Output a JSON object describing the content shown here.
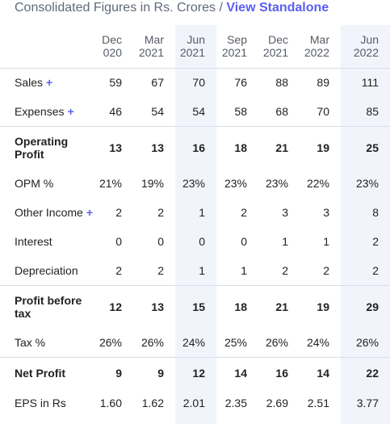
{
  "header": {
    "title": "Consolidated Figures in Rs. Crores",
    "separator": " / ",
    "link": "View Standalone"
  },
  "table": {
    "columns": [
      {
        "line1": "Dec",
        "line2": "020"
      },
      {
        "line1": "Mar",
        "line2": "2021"
      },
      {
        "line1": "Jun",
        "line2": "2021"
      },
      {
        "line1": "Sep",
        "line2": "2021"
      },
      {
        "line1": "Dec",
        "line2": "2021"
      },
      {
        "line1": "Mar",
        "line2": "2022"
      },
      {
        "line1": "Jun",
        "line2": "2022"
      }
    ],
    "rows": [
      {
        "label": "Sales",
        "plus": "+",
        "values": [
          "59",
          "67",
          "70",
          "76",
          "88",
          "89",
          "111"
        ]
      },
      {
        "label": "Expenses",
        "plus": "+",
        "values": [
          "46",
          "54",
          "54",
          "58",
          "68",
          "70",
          "85"
        ]
      },
      {
        "label": "Operating Profit",
        "values": [
          "13",
          "13",
          "16",
          "18",
          "21",
          "19",
          "25"
        ]
      },
      {
        "label": "OPM %",
        "values": [
          "21%",
          "19%",
          "23%",
          "23%",
          "23%",
          "22%",
          "23%"
        ]
      },
      {
        "label": "Other Income",
        "plus": "+",
        "values": [
          "2",
          "2",
          "1",
          "2",
          "3",
          "3",
          "8"
        ]
      },
      {
        "label": "Interest",
        "values": [
          "0",
          "0",
          "0",
          "0",
          "1",
          "1",
          "2"
        ]
      },
      {
        "label": "Depreciation",
        "values": [
          "2",
          "2",
          "1",
          "1",
          "2",
          "2",
          "2"
        ]
      },
      {
        "label": "Profit before tax",
        "values": [
          "12",
          "13",
          "15",
          "18",
          "21",
          "19",
          "29"
        ]
      },
      {
        "label": "Tax %",
        "values": [
          "26%",
          "26%",
          "24%",
          "25%",
          "26%",
          "24%",
          "26%"
        ]
      },
      {
        "label": "Net Profit",
        "values": [
          "9",
          "9",
          "12",
          "14",
          "16",
          "14",
          "22"
        ]
      },
      {
        "label": "EPS in Rs",
        "values": [
          "1.60",
          "1.62",
          "2.01",
          "2.35",
          "2.69",
          "2.51",
          "3.77"
        ]
      }
    ]
  }
}
